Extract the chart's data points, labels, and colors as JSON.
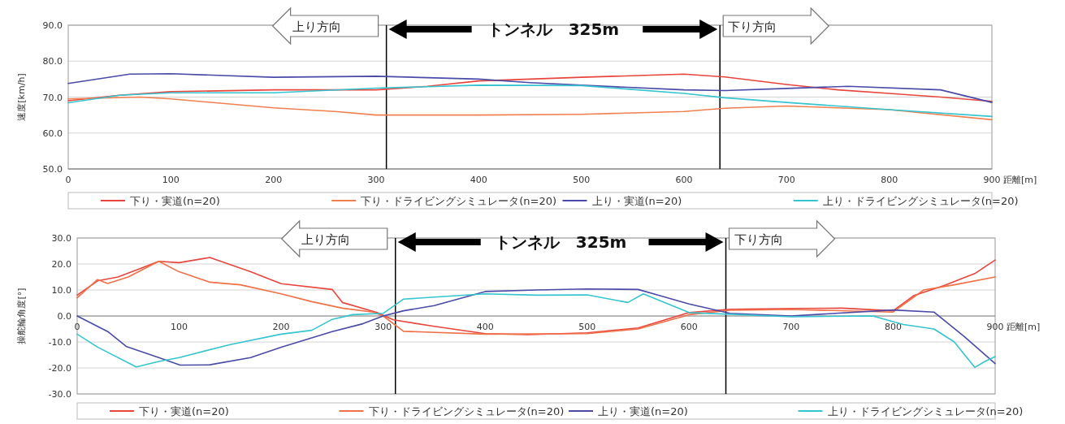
{
  "chart_data": [
    {
      "type": "line",
      "ylabel": "速度[km/h]",
      "xlabel": "距離[m]",
      "xlim": [
        0,
        900
      ],
      "xticks": [
        0,
        100,
        200,
        300,
        400,
        500,
        600,
        700,
        800,
        900
      ],
      "ylim": [
        50,
        90
      ],
      "yticks": [
        {
          "value": 50,
          "label": "50.0"
        },
        {
          "value": 60,
          "label": "60.0"
        },
        {
          "value": 70,
          "label": "70.0"
        },
        {
          "value": 80,
          "label": "80.0"
        },
        {
          "value": 90,
          "label": "90.0"
        }
      ],
      "grid": "y",
      "legend": "bottom",
      "line_style": "solid",
      "marker": "none",
      "ref_lines": [
        {
          "axis": "x",
          "value": 310,
          "color": "#000000"
        },
        {
          "axis": "x",
          "value": 635,
          "color": "#000000"
        }
      ],
      "annotations": [
        "上り方向",
        "トンネル　325m",
        "下り方向"
      ],
      "series": [
        {
          "name": "下り・実道(n=20)",
          "color": "#e8453c",
          "x": [
            0,
            50,
            100,
            200,
            300,
            350,
            400,
            500,
            600,
            640,
            700,
            750,
            800,
            850,
            900
          ],
          "values": [
            69,
            70.5,
            71.5,
            72,
            72,
            73,
            74.5,
            75.5,
            76.4,
            75.6,
            73.5,
            72,
            71,
            70,
            68.8
          ]
        },
        {
          "name": "下り・ドライビングシミュレータ(n=20)",
          "color": "#f08050",
          "x": [
            0,
            70,
            100,
            200,
            260,
            300,
            400,
            500,
            600,
            640,
            700,
            800,
            900
          ],
          "values": [
            69.5,
            70,
            69.5,
            67,
            66,
            65,
            65,
            65.2,
            66,
            66.9,
            67.5,
            66.5,
            63.7
          ]
        },
        {
          "name": "上り・実道(n=20)",
          "color": "#4a4aa8",
          "x": [
            0,
            60,
            100,
            200,
            300,
            400,
            450,
            500,
            600,
            640,
            700,
            760,
            850,
            900
          ],
          "values": [
            73.8,
            76.4,
            76.5,
            75.5,
            75.8,
            75,
            74,
            73.3,
            72,
            71.8,
            72.4,
            73,
            72,
            68.5
          ]
        },
        {
          "name": "上り・ドライビングシミュレータ(n=20)",
          "color": "#35c4d0",
          "x": [
            0,
            50,
            100,
            200,
            300,
            400,
            500,
            600,
            640,
            700,
            800,
            900
          ],
          "values": [
            68.4,
            70.5,
            71.2,
            71.2,
            72.5,
            73.3,
            73.2,
            71,
            69.8,
            68.5,
            66.5,
            64.6
          ]
        }
      ]
    },
    {
      "type": "line",
      "ylabel": "操舵輪角度[°]",
      "xlabel": "距離[m]",
      "xlim": [
        0,
        900
      ],
      "xticks": [
        0,
        100,
        200,
        300,
        400,
        500,
        600,
        700,
        800,
        900
      ],
      "ylim": [
        -30,
        30
      ],
      "yticks": [
        {
          "value": -30,
          "label": "-30.0"
        },
        {
          "value": -20,
          "label": "-20.0"
        },
        {
          "value": -10,
          "label": "-10.0"
        },
        {
          "value": 0,
          "label": "0.0"
        },
        {
          "value": 10,
          "label": "10.0"
        },
        {
          "value": 20,
          "label": "20.0"
        },
        {
          "value": 30,
          "label": "30.0"
        }
      ],
      "grid": "y",
      "legend": "bottom",
      "line_style": "solid",
      "marker": "none",
      "ref_lines": [
        {
          "axis": "x",
          "value": 312,
          "color": "#000000"
        },
        {
          "axis": "x",
          "value": 636,
          "color": "#000000"
        }
      ],
      "annotations": [
        "上り方向",
        "トンネル　325m",
        "下り方向"
      ],
      "series": [
        {
          "name": "下り・実道(n=20)",
          "color": "#e8453c",
          "x": [
            0,
            20,
            40,
            60,
            80,
            100,
            130,
            170,
            200,
            250,
            260,
            294,
            310,
            350,
            400,
            442,
            500,
            550,
            600,
            640,
            700,
            750,
            800,
            820,
            850,
            880,
            900
          ],
          "values": [
            8,
            13.5,
            15,
            18,
            21,
            20.5,
            22.5,
            17,
            12.4,
            10.2,
            5.2,
            1.3,
            -1.5,
            -4,
            -6.8,
            -7.2,
            -6.5,
            -4.6,
            1.3,
            2.6,
            2.9,
            3,
            2,
            7.8,
            11.7,
            16.3,
            21.5
          ]
        },
        {
          "name": "下り・ドライビングシミュレータ(n=20)",
          "color": "#f07048",
          "x": [
            0,
            20,
            30,
            50,
            80,
            100,
            130,
            160,
            200,
            230,
            260,
            290,
            300,
            320,
            400,
            500,
            550,
            600,
            640,
            700,
            800,
            830,
            860,
            900
          ],
          "values": [
            7,
            14,
            12.5,
            15,
            21,
            17,
            13,
            12,
            8.5,
            5.5,
            3,
            1.5,
            0,
            -5.9,
            -7,
            -6.8,
            -5,
            0.5,
            2.2,
            2.5,
            1.5,
            10,
            12,
            15
          ]
        },
        {
          "name": "上り・実道(n=20)",
          "color": "#4a4aa8",
          "x": [
            0,
            30,
            48,
            80,
            101,
            130,
            170,
            200,
            250,
            280,
            300,
            320,
            350,
            400,
            450,
            500,
            550,
            570,
            600,
            640,
            700,
            800,
            840,
            870,
            900
          ],
          "values": [
            0,
            -6,
            -11.7,
            -16,
            -18.9,
            -18.8,
            -16,
            -12,
            -6,
            -3,
            0,
            2,
            4,
            9.4,
            10,
            10.4,
            10.2,
            8,
            4.6,
            1,
            0,
            2.3,
            1.5,
            -8,
            -18.3
          ]
        },
        {
          "name": "上り・ドライビングシミュレータ(n=20)",
          "color": "#35c4d0",
          "x": [
            0,
            20,
            58,
            80,
            100,
            150,
            200,
            230,
            250,
            270,
            300,
            320,
            400,
            450,
            500,
            540,
            555,
            600,
            700,
            780,
            810,
            840,
            860,
            880,
            890,
            900
          ],
          "values": [
            -7,
            -12,
            -19.6,
            -17.5,
            -16,
            -11,
            -7,
            -5.5,
            -1.3,
            0.5,
            1,
            6.5,
            8.5,
            8,
            8.1,
            5.2,
            8.5,
            1.3,
            -0.3,
            0,
            -3.3,
            -5,
            -10,
            -19.8,
            -17.5,
            -15.6
          ]
        }
      ]
    }
  ]
}
